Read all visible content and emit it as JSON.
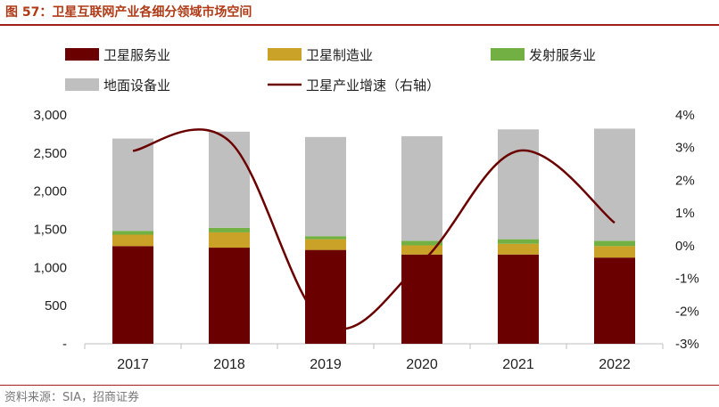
{
  "header": {
    "title": "图 57：卫星互联网产业各细分领域市场空间"
  },
  "footer": {
    "source": "资料来源：SIA，招商证券"
  },
  "chart_data": {
    "type": "bar",
    "stacked": true,
    "categories": [
      "2017",
      "2018",
      "2019",
      "2020",
      "2021",
      "2022"
    ],
    "series": [
      {
        "name": "卫星服务业",
        "color": "#6b0000",
        "axis": "left",
        "values": [
          1280,
          1260,
          1230,
          1170,
          1170,
          1130
        ]
      },
      {
        "name": "卫星制造业",
        "color": "#c9a227",
        "axis": "left",
        "values": [
          150,
          200,
          140,
          120,
          140,
          150
        ]
      },
      {
        "name": "发射服务业",
        "color": "#72b043",
        "axis": "left",
        "values": [
          50,
          60,
          40,
          60,
          60,
          70
        ]
      },
      {
        "name": "地面设备业",
        "color": "#bfbfbf",
        "axis": "left",
        "values": [
          1210,
          1260,
          1300,
          1370,
          1440,
          1470
        ]
      },
      {
        "name": "卫星产业增速（右轴）",
        "type": "line",
        "color": "#6b0000",
        "axis": "right",
        "values": [
          2.9,
          3.2,
          -2.4,
          -0.5,
          2.9,
          0.7
        ]
      }
    ],
    "y_left": {
      "min": 0,
      "max": 3000,
      "step": 500,
      "tick_labels": [
        "-",
        "500",
        "1,000",
        "1,500",
        "2,000",
        "2,500",
        "3,000"
      ]
    },
    "y_right": {
      "min": -3,
      "max": 4,
      "step": 1,
      "tick_labels": [
        "-3%",
        "-2%",
        "-1%",
        "0%",
        "1%",
        "2%",
        "3%",
        "4%"
      ]
    },
    "legend_position": "top",
    "grid": false
  }
}
